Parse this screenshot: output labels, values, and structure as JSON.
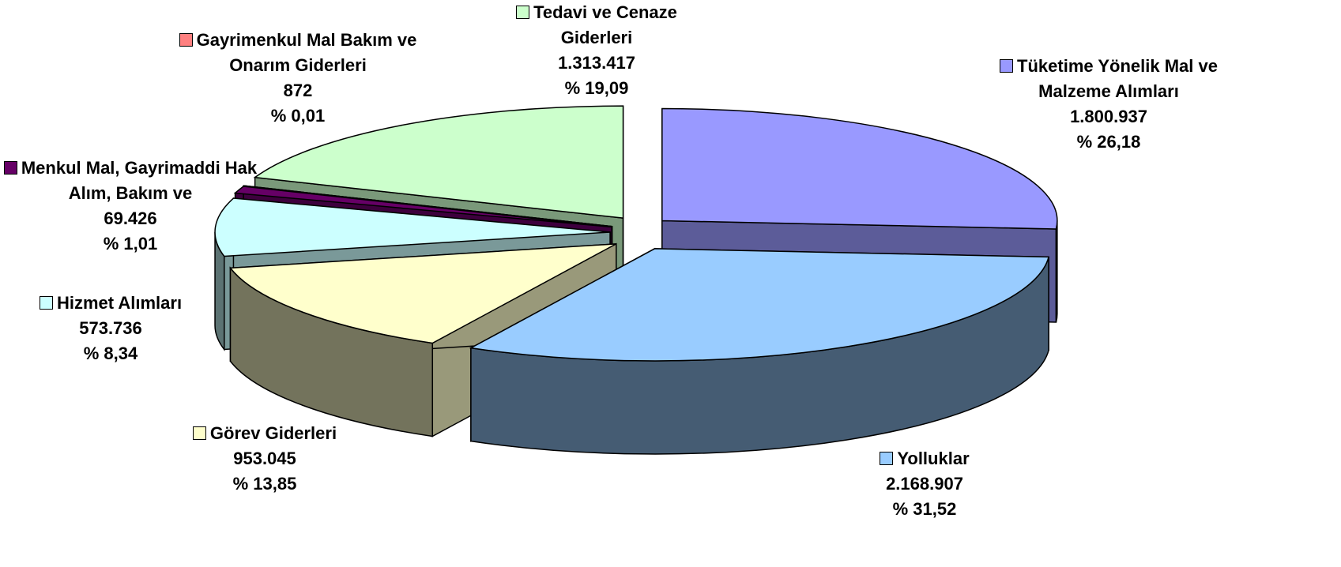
{
  "chart_data": {
    "type": "pie3d",
    "categories": [
      "Tüketime Yönelik Mal ve Malzeme Alımları",
      "Yolluklar",
      "Görev Giderleri",
      "Hizmet Alımları",
      "Menkul Mal, Gayrimaddi Hak Alım, Bakım ve",
      "Gayrimenkul Mal Bakım ve Onarım Giderleri",
      "Tedavi ve Cenaze Giderleri"
    ],
    "values": [
      1800937,
      2168907,
      953045,
      573736,
      69426,
      872,
      1313417
    ],
    "value_labels": [
      "1.800.937",
      "2.168.907",
      "953.045",
      "573.736",
      "69.426",
      "872",
      "1.313.417"
    ],
    "percent_labels": [
      "% 26,18",
      "% 31,52",
      "% 13,85",
      "% 8,34",
      "% 1,01",
      "% 0,01",
      "% 19,09"
    ],
    "colors": [
      "#9999ff",
      "#99ccff",
      "#ffffcc",
      "#ccffff",
      "#660066",
      "#ff8080",
      "#ccffcc"
    ]
  }
}
